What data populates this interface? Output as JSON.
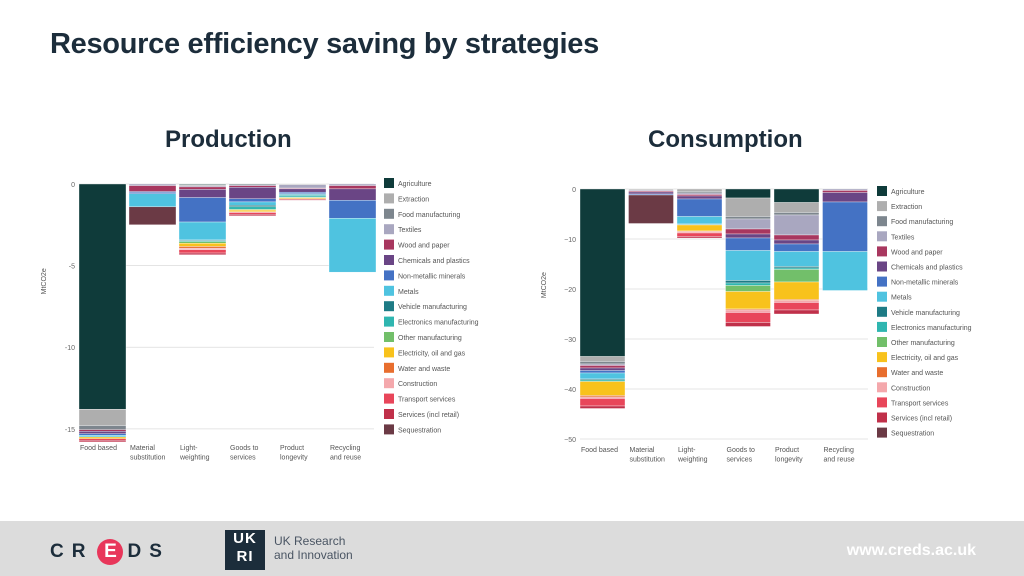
{
  "title": "Resource efficiency saving by strategies",
  "footer": {
    "creds_letters": [
      "C",
      "R",
      "E",
      "D",
      "S"
    ],
    "ukri_mark": "UK RI",
    "ukri_line1": "UK Research",
    "ukri_line2": "and Innovation",
    "website": "www.creds.ac.uk"
  },
  "chart_data": [
    {
      "type": "bar",
      "stacked": true,
      "title": "Production",
      "ylabel": "MtCO2e",
      "ylim": [
        -15.5,
        0
      ],
      "yticks": [
        0,
        -5,
        -10,
        -15
      ],
      "ytick_labels": [
        "0",
        "-5",
        "-10",
        "-15"
      ],
      "categories": [
        "Food based",
        "Material substitution",
        "Light-weighting",
        "Goods to services",
        "Product longevity",
        "Recycling and reuse"
      ],
      "category_lines": [
        [
          "Food based"
        ],
        [
          "Material",
          "substitution"
        ],
        [
          "Light-",
          "weighting"
        ],
        [
          "Goods to",
          "services"
        ],
        [
          "Product",
          "longevity"
        ],
        [
          "Recycling",
          "and reuse"
        ]
      ],
      "legend": [
        "Agriculture",
        "Extraction",
        "Food manufacturing",
        "Textiles",
        "Wood and paper",
        "Chemicals and plastics",
        "Non-metallic minerals",
        "Metals",
        "Vehicle manufacturing",
        "Electronics manufacturing",
        "Other manufacturing",
        "Electricity, oil and gas",
        "Water and waste",
        "Construction",
        "Transport services",
        "Services (incl retail)",
        "Sequestration"
      ],
      "legend_colors": [
        "#0f3b3a",
        "#aeaeae",
        "#7d868e",
        "#a9a7c0",
        "#a8375f",
        "#6a4585",
        "#4472c4",
        "#4fc3e0",
        "#1e7b85",
        "#2fb6b0",
        "#72bf6a",
        "#f8c21c",
        "#e86e2e",
        "#f4a8ac",
        "#e8465a",
        "#c0304a",
        "#6b3a45"
      ],
      "series": [
        {
          "name": "Agriculture",
          "values": [
            -13.8,
            0,
            -0.05,
            -0.05,
            0,
            0
          ]
        },
        {
          "name": "Extraction",
          "values": [
            -1.0,
            0,
            -0.05,
            0,
            -0.05,
            0
          ]
        },
        {
          "name": "Food manufacturing",
          "values": [
            -0.25,
            0,
            0,
            0,
            0,
            0
          ]
        },
        {
          "name": "Textiles",
          "values": [
            0,
            -0.1,
            -0.08,
            -0.05,
            -0.2,
            -0.1
          ]
        },
        {
          "name": "Wood and paper",
          "values": [
            -0.1,
            -0.35,
            -0.15,
            -0.1,
            -0.05,
            -0.2
          ]
        },
        {
          "name": "Chemicals and plastics",
          "values": [
            -0.15,
            -0.05,
            -0.5,
            -0.7,
            -0.2,
            -0.7
          ]
        },
        {
          "name": "Non-metallic minerals",
          "values": [
            -0.1,
            -0.1,
            -1.5,
            -0.2,
            -0.1,
            -1.1
          ]
        },
        {
          "name": "Metals",
          "values": [
            -0.1,
            -0.8,
            -1.1,
            -0.2,
            -0.05,
            -3.3
          ]
        },
        {
          "name": "Vehicle manufacturing",
          "values": [
            0,
            0,
            -0.05,
            -0.1,
            -0.05,
            0
          ]
        },
        {
          "name": "Electronics manufacturing",
          "values": [
            0,
            0,
            -0.05,
            -0.15,
            -0.1,
            0
          ]
        },
        {
          "name": "Other manufacturing",
          "values": [
            0,
            0,
            -0.1,
            -0.05,
            -0.05,
            0
          ]
        },
        {
          "name": "Electricity, oil and gas",
          "values": [
            -0.1,
            0,
            -0.2,
            -0.1,
            -0.05,
            0
          ]
        },
        {
          "name": "Water and waste",
          "values": [
            0,
            0,
            -0.1,
            0,
            0,
            0
          ]
        },
        {
          "name": "Construction",
          "values": [
            0,
            0,
            -0.1,
            -0.05,
            0,
            0
          ]
        },
        {
          "name": "Transport services",
          "values": [
            -0.1,
            0,
            -0.2,
            -0.1,
            -0.05,
            0
          ]
        },
        {
          "name": "Services (incl retail)",
          "values": [
            -0.1,
            0,
            -0.1,
            -0.1,
            -0.05,
            0
          ]
        },
        {
          "name": "Sequestration",
          "values": [
            0,
            -1.1,
            0,
            0,
            0,
            0
          ]
        }
      ]
    },
    {
      "type": "bar",
      "stacked": true,
      "title": "Consumption",
      "ylabel": "MtCO2e",
      "ylim": [
        -50,
        0
      ],
      "yticks": [
        0,
        -10,
        -20,
        -30,
        -40,
        -50
      ],
      "ytick_labels": [
        "0",
        "−10",
        "−20",
        "−30",
        "−40",
        "−50"
      ],
      "categories": [
        "Food based",
        "Material substitution",
        "Light-weighting",
        "Goods to services",
        "Product longevity",
        "Recycling and reuse"
      ],
      "category_lines": [
        [
          "Food based"
        ],
        [
          "Material",
          "substitution"
        ],
        [
          "Light-",
          "weighting"
        ],
        [
          "Goods to",
          "services"
        ],
        [
          "Product",
          "longevity"
        ],
        [
          "Recycling",
          "and reuse"
        ]
      ],
      "legend": [
        "Agriculture",
        "Extraction",
        "Food manufacturing",
        "Textiles",
        "Wood and paper",
        "Chemicals and plastics",
        "Non-metallic minerals",
        "Metals",
        "Vehicle manufacturing",
        "Electronics manufacturing",
        "Other manufacturing",
        "Electricity, oil and gas",
        "Water and waste",
        "Construction",
        "Transport services",
        "Services (incl retail)",
        "Sequestration"
      ],
      "legend_colors": [
        "#0f3b3a",
        "#aeaeae",
        "#7d868e",
        "#a9a7c0",
        "#a8375f",
        "#6a4585",
        "#4472c4",
        "#4fc3e0",
        "#1e7b85",
        "#2fb6b0",
        "#72bf6a",
        "#f8c21c",
        "#e86e2e",
        "#f4a8ac",
        "#e8465a",
        "#c0304a",
        "#6b3a45"
      ],
      "series": [
        {
          "name": "Agriculture",
          "values": [
            -33.5,
            0,
            0,
            -1.8,
            -2.7,
            0
          ]
        },
        {
          "name": "Extraction",
          "values": [
            -1.0,
            -0.2,
            -0.5,
            -3.7,
            -2.0,
            0
          ]
        },
        {
          "name": "Food manufacturing",
          "values": [
            -0.5,
            0,
            -0.3,
            -0.5,
            -0.5,
            0
          ]
        },
        {
          "name": "Textiles",
          "values": [
            -0.3,
            -0.2,
            -0.3,
            -2.0,
            -4.0,
            -0.3
          ]
        },
        {
          "name": "Wood and paper",
          "values": [
            -0.5,
            -0.2,
            -0.3,
            -1.0,
            -1.0,
            -0.4
          ]
        },
        {
          "name": "Chemicals and plastics",
          "values": [
            -0.5,
            -0.4,
            -0.6,
            -0.8,
            -0.8,
            -1.9
          ]
        },
        {
          "name": "Non-metallic minerals",
          "values": [
            -0.5,
            -0.2,
            -3.5,
            -2.5,
            -1.5,
            -9.9
          ]
        },
        {
          "name": "Metals",
          "values": [
            -1.2,
            0,
            -1.5,
            -6.0,
            -3.0,
            -7.8
          ]
        },
        {
          "name": "Vehicle manufacturing",
          "values": [
            -0.2,
            0,
            -0.1,
            -0.5,
            -0.3,
            0
          ]
        },
        {
          "name": "Electronics manufacturing",
          "values": [
            -0.3,
            0,
            -0.1,
            -0.5,
            -0.3,
            0
          ]
        },
        {
          "name": "Other manufacturing",
          "values": [
            0,
            0,
            0,
            -1.2,
            -2.5,
            0
          ]
        },
        {
          "name": "Electricity, oil and gas",
          "values": [
            -2.8,
            0,
            -1.2,
            -3.5,
            -3.5,
            0
          ]
        },
        {
          "name": "Water and waste",
          "values": [
            -0.3,
            0,
            -0.1,
            -0.2,
            -0.2,
            0
          ]
        },
        {
          "name": "Construction",
          "values": [
            -0.3,
            0,
            -0.3,
            -0.5,
            -0.4,
            0
          ]
        },
        {
          "name": "Transport services",
          "values": [
            -1.5,
            0,
            -0.7,
            -2.0,
            -1.5,
            0
          ]
        },
        {
          "name": "Services (incl retail)",
          "values": [
            -0.5,
            0,
            -0.3,
            -0.8,
            -0.8,
            0
          ]
        },
        {
          "name": "Sequestration",
          "values": [
            0,
            -5.7,
            0,
            0,
            0,
            0
          ]
        }
      ]
    }
  ]
}
